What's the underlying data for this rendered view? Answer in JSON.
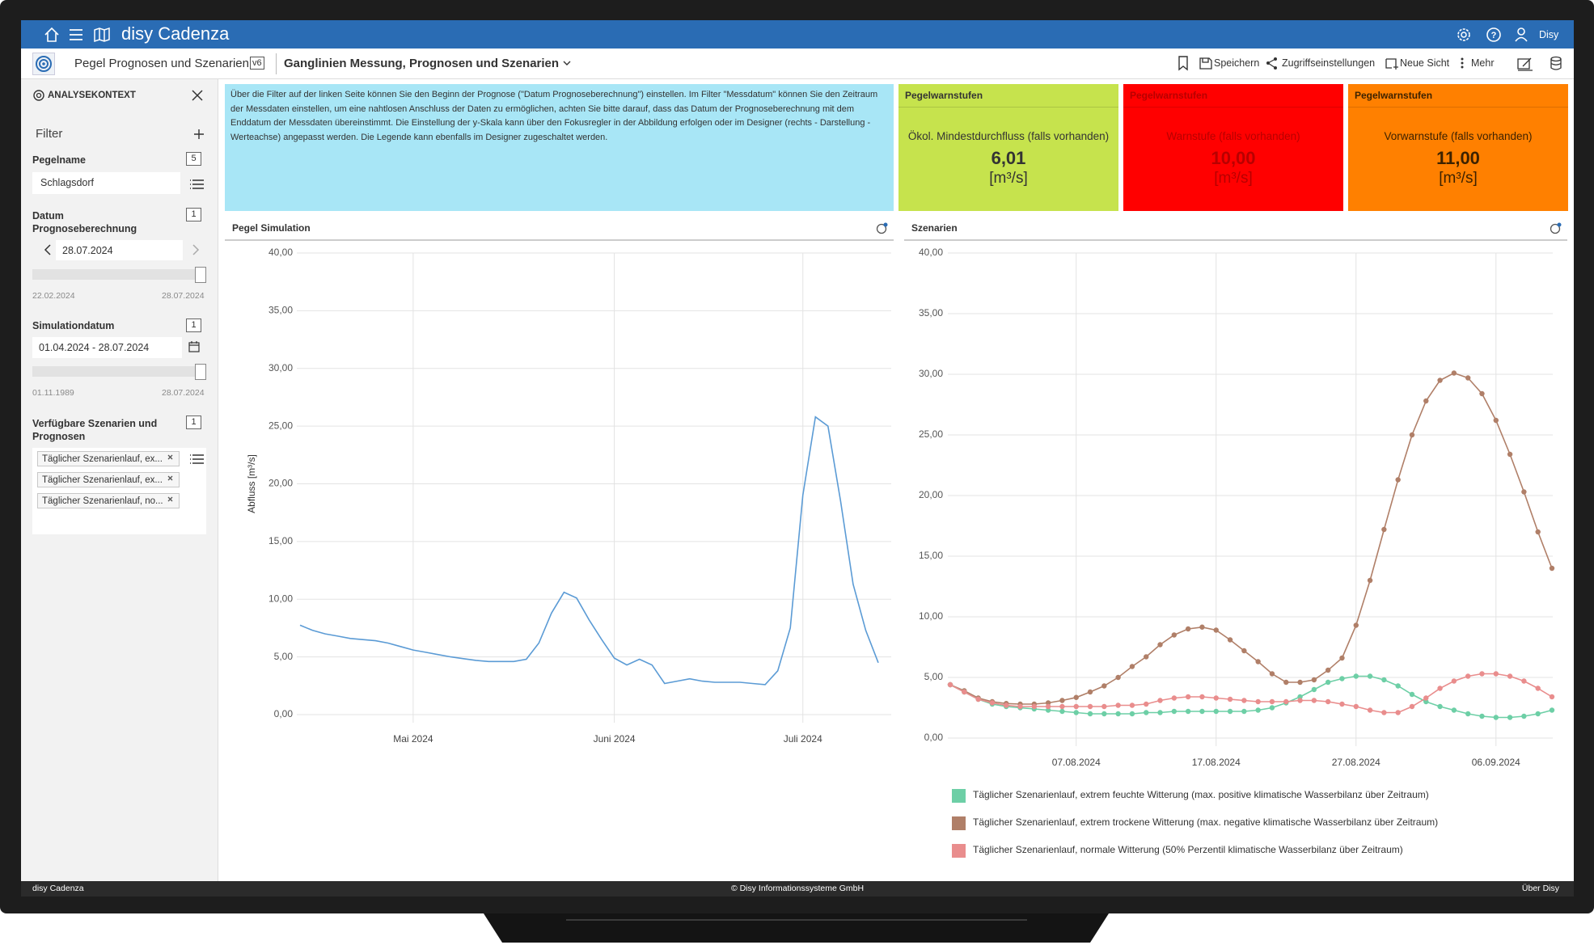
{
  "app": {
    "title": "disy Cadenza",
    "user": "Disy"
  },
  "toolbar": {
    "workbook": "Pegel Prognosen und Szenarien",
    "version": "v6",
    "view": "Ganglinien Messung, Prognosen und Szenarien",
    "actions": [
      "Speichern",
      "Zugriffseinstellungen",
      "Neue Sicht",
      "Mehr"
    ]
  },
  "sidebar": {
    "title": "ANALYSEKONTEXT",
    "filter_heading": "Filter",
    "filters": [
      {
        "label": "Pegelname",
        "count": 5,
        "value": "Schlagsdorf"
      },
      {
        "label": "Datum Prognoseberechnung",
        "count": 1,
        "value": "28.07.2024",
        "range": [
          "22.02.2024",
          "28.07.2024"
        ]
      },
      {
        "label": "Simulationdatum",
        "count": 1,
        "value": "01.04.2024 - 28.07.2024",
        "range": [
          "01.11.1989",
          "28.07.2024"
        ]
      },
      {
        "label": "Verfügbare Szenarien und Prognosen",
        "count": 1,
        "tags": [
          "Täglicher Szenarienlauf, ex...",
          "Täglicher Szenarienlauf, ex...",
          "Täglicher Szenarienlauf, no..."
        ]
      }
    ]
  },
  "info_text": "Über die Filter auf der linken Seite können Sie den Beginn der Prognose (\"Datum Prognoseberechnung\") einstellen.  Im Filter \"Messdatum\" können Sie den Zeitraum der Messdaten einstellen, um eine nahtlosen Anschluss der Daten zu ermöglichen, achten Sie bitte darauf, dass das Datum der Prognoseberechnung mit dem Enddatum der Messdaten übereinstimmt. Die Einstellung der y-Skala kann über den Fokusregler in der Abbildung erfolgen oder im Designer (rechts - Darstellung - Werteachse) angepasst werden. Die Legende kann ebenfalls im Designer zugeschaltet werden.",
  "warn_cards": [
    {
      "title": "Pegelwarnstufen",
      "label": "Ökol. Mindestdurchfluss (falls vorhanden)",
      "value": "6,01",
      "unit": "[m³/s]",
      "color": "#c6e34d",
      "text_color": "#333333"
    },
    {
      "title": "Pegelwarnstufen",
      "label": "Warnstufe (falls vorhanden)",
      "value": "10,00",
      "unit": "[m³/s]",
      "color": "#ff0000",
      "text_color": "#b80000"
    },
    {
      "title": "Pegelwarnstufen",
      "label": "Vorwarnstufe (falls vorhanden)",
      "value": "11,00",
      "unit": "[m³/s]",
      "color": "#ff8000",
      "text_color": "#3d2200"
    }
  ],
  "chart_data": [
    {
      "type": "line",
      "title": "Pegel Simulation",
      "y_label": "Abfluss [m³/s]",
      "color": "#5b9bd5",
      "grid": true,
      "markers": false,
      "categories": [
        null,
        null,
        null,
        null,
        null,
        null,
        null,
        null,
        null,
        "Mai 2024",
        null,
        null,
        null,
        null,
        null,
        null,
        null,
        null,
        null,
        null,
        null,
        null,
        null,
        null,
        null,
        "Juni 2024",
        null,
        null,
        null,
        null,
        null,
        null,
        null,
        null,
        null,
        null,
        null,
        null,
        null,
        null,
        "Juli 2024",
        null,
        null,
        null,
        null,
        null,
        null
      ],
      "values": [
        7.75,
        7.3,
        7.0,
        6.8,
        6.6,
        6.5,
        6.4,
        6.2,
        5.9,
        5.6,
        5.4,
        5.2,
        5.0,
        4.85,
        4.7,
        4.6,
        4.6,
        4.6,
        4.8,
        6.2,
        8.8,
        10.6,
        10.1,
        8.2,
        6.5,
        4.9,
        4.3,
        4.8,
        4.3,
        2.7,
        2.9,
        3.1,
        2.9,
        2.8,
        2.8,
        2.8,
        2.7,
        2.6,
        3.8,
        7.5,
        19,
        25.8,
        25.0,
        18.5,
        11.3,
        7.3,
        4.5
      ],
      "ylim": [
        0,
        40
      ],
      "yticks": [
        {
          "value": 0,
          "label": "0,00"
        },
        {
          "value": 5,
          "label": "5,00"
        },
        {
          "value": 10,
          "label": "10,00"
        },
        {
          "value": 15,
          "label": "15,00"
        },
        {
          "value": 20,
          "label": "20,00"
        },
        {
          "value": 25,
          "label": "25,00"
        },
        {
          "value": 30,
          "label": "30,00"
        },
        {
          "value": 35,
          "label": "35,00"
        },
        {
          "value": 40,
          "label": "40,00"
        }
      ]
    },
    {
      "type": "line",
      "title": "Szenarien",
      "grid": true,
      "markers": true,
      "legend": "bottom-left",
      "categories": [
        null,
        null,
        null,
        null,
        null,
        null,
        null,
        null,
        null,
        "07.08.2024",
        null,
        null,
        null,
        null,
        null,
        null,
        null,
        null,
        null,
        "17.08.2024",
        null,
        null,
        null,
        null,
        null,
        null,
        null,
        null,
        null,
        "27.08.2024",
        null,
        null,
        null,
        null,
        null,
        null,
        null,
        null,
        null,
        "06.09.2024",
        null,
        null,
        null,
        null
      ],
      "series": [
        {
          "name": "Täglicher Szenarienlauf, extrem trockene Witterung (max. negative klimatische Wasserbilanz über Zeitraum)",
          "color": "#b07f68",
          "values": [
            4.4,
            3.9,
            3.3,
            3.0,
            2.85,
            2.8,
            2.8,
            2.9,
            3.1,
            3.35,
            3.8,
            4.3,
            5.0,
            5.9,
            6.7,
            7.7,
            8.5,
            9.0,
            9.15,
            8.9,
            8.1,
            7.2,
            6.3,
            5.3,
            4.6,
            4.6,
            4.8,
            5.6,
            6.6,
            9.3,
            13.0,
            17.2,
            21.3,
            25.0,
            27.8,
            29.5,
            30.1,
            29.7,
            28.4,
            26.2,
            23.4,
            20.3,
            17.0,
            14.0
          ]
        },
        {
          "name": "Täglicher Szenarienlauf, extrem feuchte Witterung (max. positive klimatische Wasserbilanz über Zeitraum)",
          "color": "#6dcfa6",
          "values": [
            4.4,
            3.8,
            3.2,
            2.8,
            2.6,
            2.5,
            2.4,
            2.3,
            2.2,
            2.1,
            2.0,
            2.0,
            2.0,
            2.0,
            2.1,
            2.1,
            2.2,
            2.2,
            2.2,
            2.2,
            2.2,
            2.2,
            2.3,
            2.5,
            2.9,
            3.4,
            4.0,
            4.6,
            4.9,
            5.1,
            5.1,
            4.8,
            4.3,
            3.6,
            3.0,
            2.6,
            2.3,
            2.0,
            1.8,
            1.7,
            1.7,
            1.8,
            2.0,
            2.3
          ]
        },
        {
          "name": "Täglicher Szenarienlauf, normale Witterung (50% Perzentil klimatische Wasserbilanz über Zeitraum)",
          "color": "#e98d8d",
          "values": [
            4.4,
            3.8,
            3.2,
            2.9,
            2.7,
            2.6,
            2.6,
            2.6,
            2.6,
            2.6,
            2.6,
            2.6,
            2.7,
            2.7,
            2.8,
            3.1,
            3.3,
            3.4,
            3.4,
            3.3,
            3.2,
            3.1,
            3.0,
            3.0,
            3.0,
            3.1,
            3.1,
            3.0,
            2.8,
            2.6,
            2.3,
            2.1,
            2.1,
            2.6,
            3.3,
            4.1,
            4.7,
            5.1,
            5.3,
            5.3,
            5.1,
            4.7,
            4.1,
            3.4
          ]
        }
      ],
      "legend_order": [
        1,
        0,
        2
      ],
      "ylim": [
        0,
        40
      ],
      "yticks": [
        {
          "value": 0,
          "label": "0,00"
        },
        {
          "value": 5,
          "label": "5,00"
        },
        {
          "value": 10,
          "label": "10,00"
        },
        {
          "value": 15,
          "label": "15,00"
        },
        {
          "value": 20,
          "label": "20,00"
        },
        {
          "value": 25,
          "label": "25,00"
        },
        {
          "value": 30,
          "label": "30,00"
        },
        {
          "value": 35,
          "label": "35,00"
        },
        {
          "value": 40,
          "label": "40,00"
        }
      ]
    }
  ],
  "footer": {
    "left": "disy Cadenza",
    "center": "© Disy Informationssysteme GmbH",
    "right": "Über Disy"
  }
}
